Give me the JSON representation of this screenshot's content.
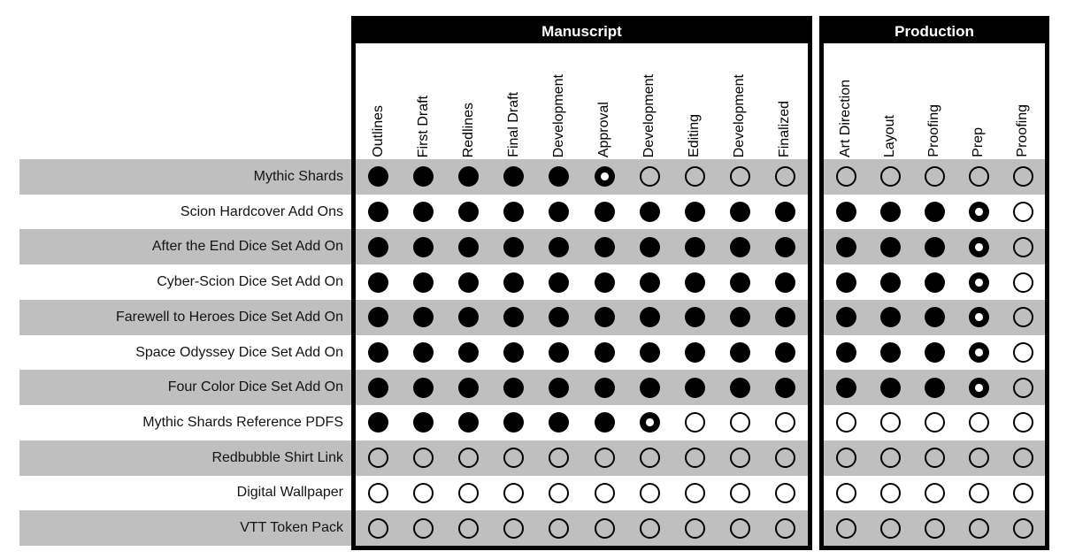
{
  "colors": {
    "header_bg": "#000000",
    "header_text": "#ffffff",
    "stripe_gray": "#bfbfbf",
    "dot_black": "#000000"
  },
  "chart_data": {
    "type": "table",
    "title": "",
    "state_encoding": {
      "full": "filled black circle (complete)",
      "partial": "black circle with white center (in progress)",
      "empty": "hollow circle (not started)"
    },
    "groups": [
      {
        "title": "Manuscript",
        "columns": [
          "Outlines",
          "First Draft",
          "Redlines",
          "Final Draft",
          "Development",
          "Approval",
          "Development",
          "Editing",
          "Development",
          "Finalized"
        ]
      },
      {
        "title": "Production",
        "columns": [
          "Art Direction",
          "Layout",
          "Proofing",
          "Prep",
          "Proofing"
        ]
      }
    ],
    "rows": [
      {
        "label": "Mythic Shards",
        "manuscript": [
          "full",
          "full",
          "full",
          "full",
          "full",
          "partial",
          "empty",
          "empty",
          "empty",
          "empty"
        ],
        "production": [
          "empty",
          "empty",
          "empty",
          "empty",
          "empty"
        ]
      },
      {
        "label": "Scion Hardcover Add Ons",
        "manuscript": [
          "full",
          "full",
          "full",
          "full",
          "full",
          "full",
          "full",
          "full",
          "full",
          "full"
        ],
        "production": [
          "full",
          "full",
          "full",
          "partial",
          "empty"
        ]
      },
      {
        "label": "After the End Dice Set Add On",
        "manuscript": [
          "full",
          "full",
          "full",
          "full",
          "full",
          "full",
          "full",
          "full",
          "full",
          "full"
        ],
        "production": [
          "full",
          "full",
          "full",
          "partial",
          "empty"
        ]
      },
      {
        "label": "Cyber-Scion Dice Set Add On",
        "manuscript": [
          "full",
          "full",
          "full",
          "full",
          "full",
          "full",
          "full",
          "full",
          "full",
          "full"
        ],
        "production": [
          "full",
          "full",
          "full",
          "partial",
          "empty"
        ]
      },
      {
        "label": "Farewell to Heroes Dice Set Add On",
        "manuscript": [
          "full",
          "full",
          "full",
          "full",
          "full",
          "full",
          "full",
          "full",
          "full",
          "full"
        ],
        "production": [
          "full",
          "full",
          "full",
          "partial",
          "empty"
        ]
      },
      {
        "label": "Space Odyssey Dice Set Add On",
        "manuscript": [
          "full",
          "full",
          "full",
          "full",
          "full",
          "full",
          "full",
          "full",
          "full",
          "full"
        ],
        "production": [
          "full",
          "full",
          "full",
          "partial",
          "empty"
        ]
      },
      {
        "label": "Four Color Dice Set Add On",
        "manuscript": [
          "full",
          "full",
          "full",
          "full",
          "full",
          "full",
          "full",
          "full",
          "full",
          "full"
        ],
        "production": [
          "full",
          "full",
          "full",
          "partial",
          "empty"
        ]
      },
      {
        "label": "Mythic Shards Reference PDFS",
        "manuscript": [
          "full",
          "full",
          "full",
          "full",
          "full",
          "full",
          "partial",
          "empty",
          "empty",
          "empty"
        ],
        "production": [
          "empty",
          "empty",
          "empty",
          "empty",
          "empty"
        ]
      },
      {
        "label": "Redbubble Shirt Link",
        "manuscript": [
          "empty",
          "empty",
          "empty",
          "empty",
          "empty",
          "empty",
          "empty",
          "empty",
          "empty",
          "empty"
        ],
        "production": [
          "empty",
          "empty",
          "empty",
          "empty",
          "empty"
        ]
      },
      {
        "label": "Digital Wallpaper",
        "manuscript": [
          "empty",
          "empty",
          "empty",
          "empty",
          "empty",
          "empty",
          "empty",
          "empty",
          "empty",
          "empty"
        ],
        "production": [
          "empty",
          "empty",
          "empty",
          "empty",
          "empty"
        ]
      },
      {
        "label": "VTT Token Pack",
        "manuscript": [
          "empty",
          "empty",
          "empty",
          "empty",
          "empty",
          "empty",
          "empty",
          "empty",
          "empty",
          "empty"
        ],
        "production": [
          "empty",
          "empty",
          "empty",
          "empty",
          "empty"
        ]
      }
    ]
  }
}
